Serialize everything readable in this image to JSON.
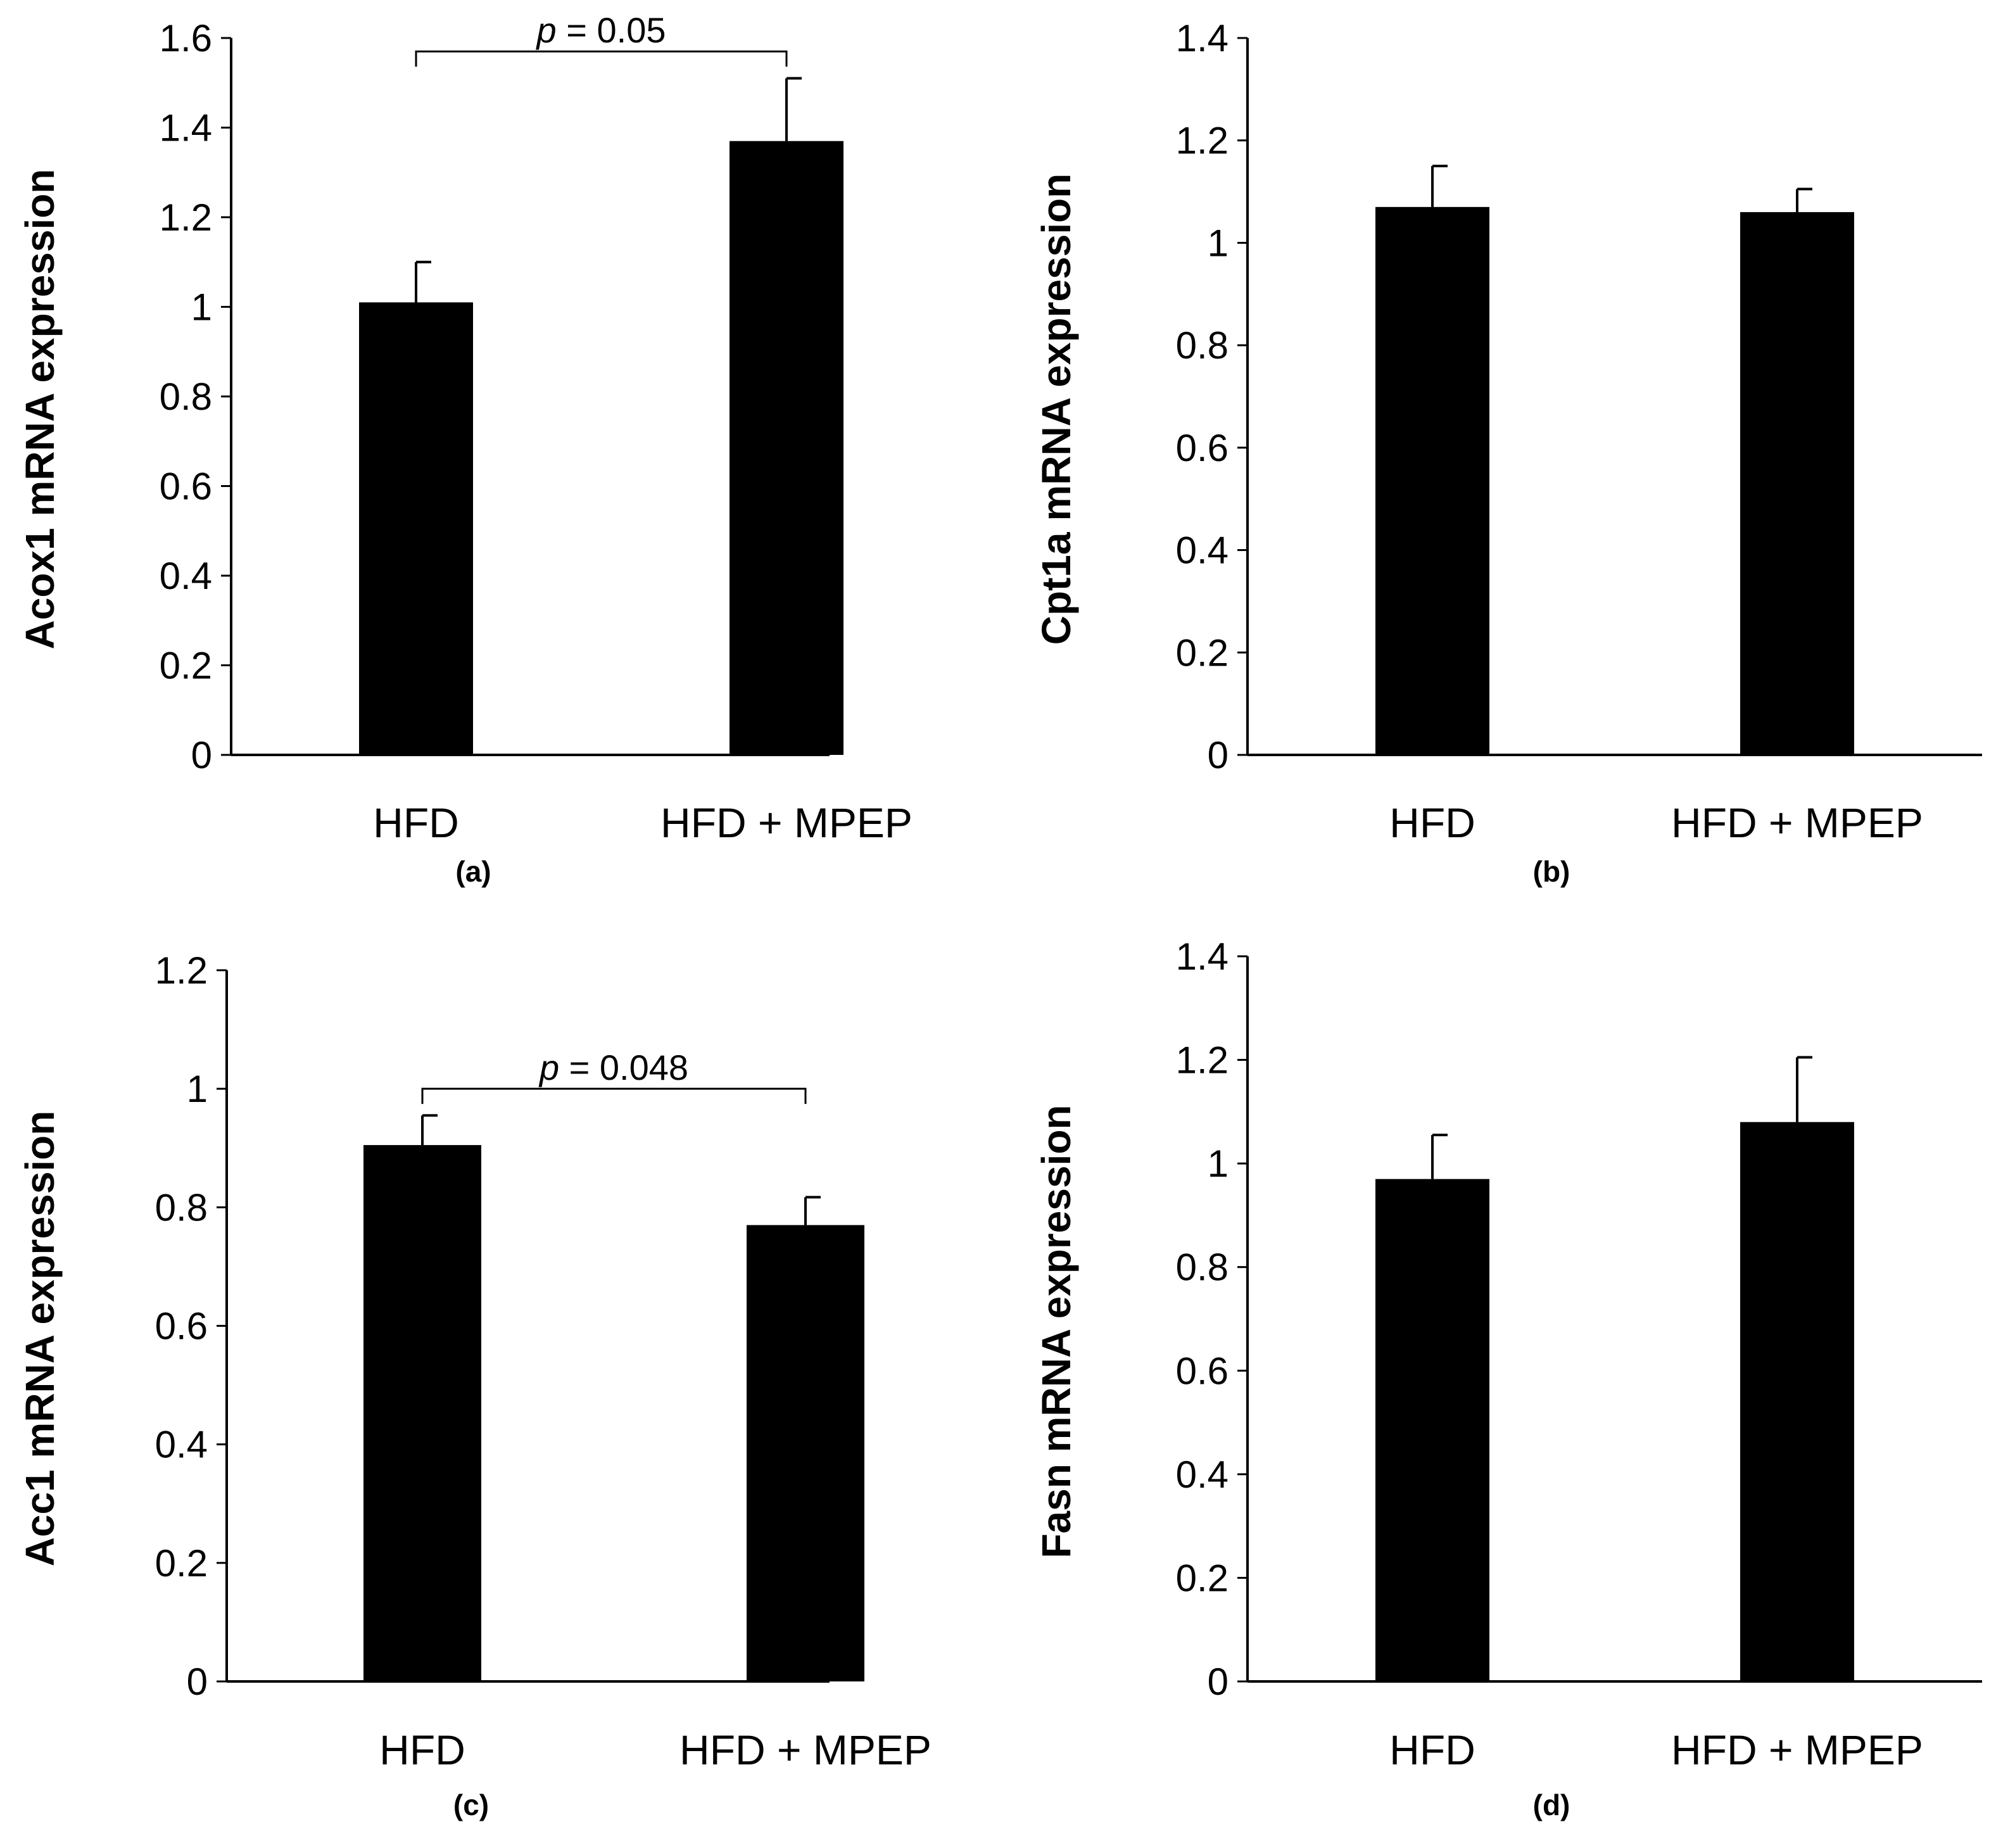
{
  "chart_data": [
    {
      "type": "bar",
      "panel_label": "(a)",
      "categories": [
        "HFD",
        "HFD + MPEP"
      ],
      "values": [
        1.01,
        1.37
      ],
      "errors": [
        0.09,
        0.14
      ],
      "ylabel": "Acox1 mRNA expression",
      "ylim": [
        0,
        1.6
      ],
      "yticks": [
        0,
        0.2,
        0.4,
        0.6,
        0.8,
        1,
        1.2,
        1.4,
        1.6
      ],
      "ytick_labels": [
        "0",
        "0.2",
        "0.4",
        "0.6",
        "0.8",
        "1",
        "1.2",
        "1.4",
        "1.6"
      ],
      "significance": {
        "p_symbol": "p",
        "text": " = 0.05",
        "bracket_value": 1.57
      }
    },
    {
      "type": "bar",
      "panel_label": "(b)",
      "categories": [
        "HFD",
        "HFD + MPEP"
      ],
      "values": [
        1.07,
        1.06
      ],
      "errors": [
        0.08,
        0.045
      ],
      "ylabel": "Cpt1a mRNA expression",
      "ylim": [
        0,
        1.4
      ],
      "yticks": [
        0,
        0.2,
        0.4,
        0.6,
        0.8,
        1,
        1.2,
        1.4
      ],
      "ytick_labels": [
        "0",
        "0.2",
        "0.4",
        "0.6",
        "0.8",
        "1",
        "1.2",
        "1.4"
      ]
    },
    {
      "type": "bar",
      "panel_label": "(c)",
      "categories": [
        "HFD",
        "HFD + MPEP"
      ],
      "values": [
        0.905,
        0.77
      ],
      "errors": [
        0.05,
        0.047
      ],
      "ylabel": "Acc1 mRNA expression",
      "ylim": [
        0,
        1.2
      ],
      "yticks": [
        0,
        0.2,
        0.4,
        0.6,
        0.8,
        1,
        1.2
      ],
      "ytick_labels": [
        "0",
        "0.2",
        "0.4",
        "0.6",
        "0.8",
        "1",
        "1.2"
      ],
      "significance": {
        "p_symbol": "p",
        "text": " = 0.048",
        "bracket_value": 1.0
      }
    },
    {
      "type": "bar",
      "panel_label": "(d)",
      "categories": [
        "HFD",
        "HFD + MPEP"
      ],
      "values": [
        0.97,
        1.08
      ],
      "errors": [
        0.085,
        0.125
      ],
      "ylabel": "Fasn mRNA expression",
      "ylim": [
        0,
        1.4
      ],
      "yticks": [
        0,
        0.2,
        0.4,
        0.6,
        0.8,
        1,
        1.2,
        1.4
      ],
      "ytick_labels": [
        "0",
        "0.2",
        "0.4",
        "0.6",
        "0.8",
        "1",
        "1.2",
        "1.4"
      ]
    }
  ],
  "colors": {
    "bar": "#000000",
    "axis": "#000000",
    "background": "#ffffff"
  }
}
